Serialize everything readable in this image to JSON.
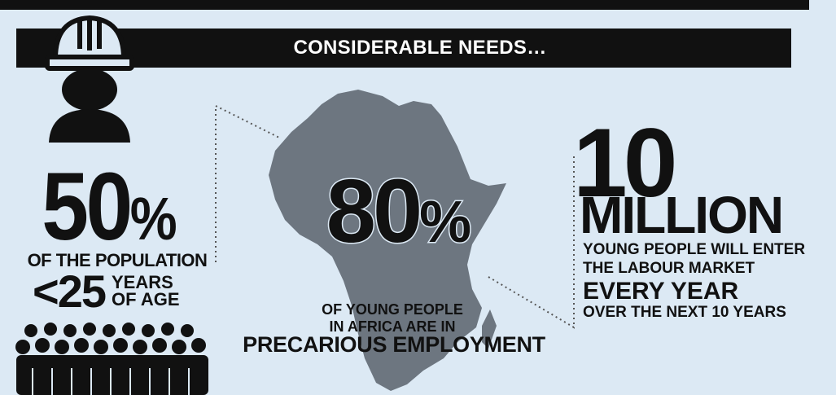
{
  "banner": {
    "title": "CONSIDERABLE NEEDS…"
  },
  "left": {
    "big_number": "50",
    "percent": "%",
    "population_line": "OF THE POPULATION",
    "age_number": "<25",
    "years": "YEARS",
    "of_age": "OF AGE"
  },
  "center": {
    "big_number": "80",
    "percent": "%",
    "line1": "OF YOUNG PEOPLE",
    "line2": "IN AFRICA ARE IN",
    "emphasis": "PRECARIOUS EMPLOYMENT"
  },
  "right": {
    "big_number": "10",
    "million": "MILLION",
    "line1": "YOUNG PEOPLE WILL ENTER",
    "line2": "THE LABOUR MARKET",
    "emphasis": "EVERY YEAR",
    "line3": "OVER THE NEXT 10 YEARS"
  },
  "colors": {
    "background": "#dce9f4",
    "dark": "#111111",
    "map": "#6d7680"
  },
  "icons": [
    "hard-hat-worker-icon",
    "crowd-icon",
    "africa-map-icon"
  ]
}
